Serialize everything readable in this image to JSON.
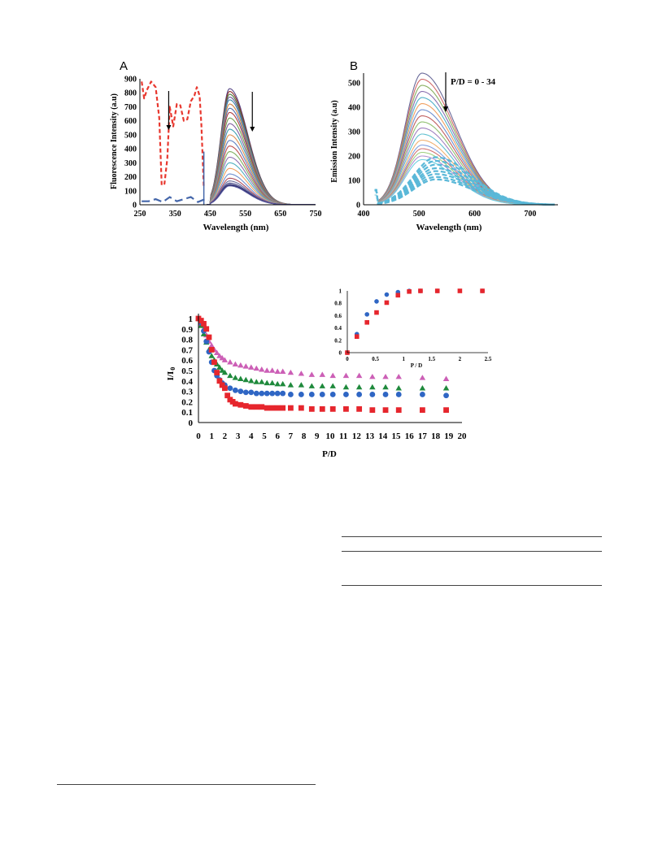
{
  "chart_data": [
    {
      "type": "line",
      "panel_label": "A",
      "xlabel": "Wavelength (nm)",
      "ylabel": "Fluorescence Intensity (a.u)",
      "xlim": [
        250,
        750
      ],
      "ylim": [
        0,
        900
      ],
      "xticks": [
        250,
        350,
        450,
        550,
        650,
        750
      ],
      "yticks": [
        0,
        100,
        200,
        300,
        400,
        500,
        600,
        700,
        800,
        900
      ],
      "excitation_series": {
        "style": "dashed",
        "color": "#e8382f",
        "x": [
          255,
          262,
          270,
          282,
          295,
          305,
          312,
          320,
          328,
          335,
          345,
          355,
          365,
          375,
          385,
          395,
          405,
          412,
          420,
          425,
          432
        ],
        "y": [
          880,
          760,
          820,
          880,
          840,
          620,
          140,
          150,
          330,
          700,
          560,
          720,
          710,
          600,
          610,
          740,
          780,
          840,
          780,
          570,
          120
        ]
      },
      "absorbance_series": {
        "style": "dashed",
        "color": "#4466aa",
        "x": [
          255,
          275,
          295,
          315,
          335,
          355,
          375,
          395,
          415,
          435,
          445
        ],
        "y": [
          25,
          25,
          40,
          20,
          55,
          25,
          40,
          55,
          20,
          40,
          30
        ]
      },
      "emission_peak_nm": 505,
      "emission_peak_values": [
        830,
        810,
        790,
        770,
        750,
        720,
        690,
        660,
        620,
        580,
        540,
        500,
        460,
        420,
        380,
        340,
        300,
        260,
        220,
        190,
        170,
        155,
        145,
        140,
        135
      ],
      "scatter_spike": {
        "x": 432,
        "y": 380
      },
      "series_colors": [
        "#5a4a8a",
        "#8b2e2e",
        "#4a7a3a",
        "#6a5a9a",
        "#3a8aaa",
        "#d08040",
        "#5070b0",
        "#b04040",
        "#70a050",
        "#8060a0",
        "#40a0b0",
        "#e09050",
        "#6080c0",
        "#c05050",
        "#80b060",
        "#9070b0",
        "#50b0c0",
        "#f0a060",
        "#7090d0",
        "#b05060",
        "#6a6a9a",
        "#4a4a8a",
        "#3a3a7a",
        "#2a2a6a",
        "#5a5aa0"
      ],
      "arrows_x": [
        332,
        570
      ]
    },
    {
      "type": "line",
      "panel_label": "B",
      "xlabel": "Wavelength (nm)",
      "ylabel": "Emission Intensity (a.u)",
      "xlim": [
        400,
        750
      ],
      "ylim": [
        0,
        550
      ],
      "xticks": [
        400,
        500,
        600,
        700
      ],
      "yticks": [
        0,
        100,
        200,
        300,
        400,
        500
      ],
      "annotation": "P/D = 0 - 34",
      "solid_peak_nm": 505,
      "solid_peak_values": [
        540,
        515,
        490,
        465,
        440,
        415,
        390,
        365,
        340,
        315,
        290,
        265,
        245,
        230,
        215,
        200,
        185
      ],
      "dashed_peak_nm": 530,
      "dashed_peak_values": [
        195,
        180,
        165,
        150,
        138,
        126,
        114,
        104
      ],
      "solid_colors": [
        "#6a6a9a",
        "#d06a6a",
        "#8ab060",
        "#8a70b0",
        "#50b0c8",
        "#f0a060",
        "#7090d0",
        "#c06060",
        "#90c070",
        "#a080c0",
        "#60c0d0",
        "#f0b070",
        "#80a0e0",
        "#d07070",
        "#a0d080",
        "#b090d0",
        "#70d0e0"
      ],
      "dashed_color": "#5ab8d8"
    },
    {
      "type": "scatter",
      "xlabel": "P/D",
      "ylabel": "I/I",
      "ylabel_subscript": "0",
      "xlim": [
        0,
        20
      ],
      "ylim": [
        0,
        1
      ],
      "xticks": [
        0,
        1,
        2,
        3,
        4,
        5,
        6,
        7,
        8,
        9,
        10,
        11,
        12,
        13,
        14,
        15,
        16,
        17,
        18,
        19,
        20
      ],
      "yticks": [
        "0",
        "0.1",
        "0.2",
        "0.3",
        "0.4",
        "0.5",
        "0.6",
        "0.7",
        "0.8",
        "0.9",
        "1"
      ],
      "series": [
        {
          "marker": "triangle",
          "color": "#cc5fb6",
          "x": [
            0.0,
            0.2,
            0.4,
            0.6,
            0.8,
            1.0,
            1.2,
            1.4,
            1.6,
            1.8,
            2.0,
            2.4,
            2.8,
            3.2,
            3.6,
            4.0,
            4.4,
            4.8,
            5.2,
            5.6,
            6.0,
            6.4,
            7.0,
            7.8,
            8.6,
            9.4,
            10.2,
            11.2,
            12.2,
            13.2,
            14.2,
            15.2,
            17.0,
            18.8
          ],
          "y": [
            1.0,
            0.95,
            0.9,
            0.84,
            0.78,
            0.74,
            0.7,
            0.67,
            0.64,
            0.62,
            0.6,
            0.58,
            0.56,
            0.55,
            0.54,
            0.53,
            0.52,
            0.51,
            0.5,
            0.5,
            0.49,
            0.49,
            0.48,
            0.47,
            0.46,
            0.46,
            0.45,
            0.45,
            0.45,
            0.44,
            0.44,
            0.44,
            0.43,
            0.42
          ]
        },
        {
          "marker": "triangle",
          "color": "#1f8a3c",
          "x": [
            0.0,
            0.2,
            0.4,
            0.6,
            0.8,
            1.0,
            1.2,
            1.4,
            1.6,
            1.8,
            2.0,
            2.4,
            2.8,
            3.2,
            3.6,
            4.0,
            4.4,
            4.8,
            5.2,
            5.6,
            6.0,
            6.4,
            7.0,
            7.8,
            8.6,
            9.4,
            10.2,
            11.2,
            12.2,
            13.2,
            14.2,
            15.2,
            17.0,
            18.8
          ],
          "y": [
            1.0,
            0.93,
            0.85,
            0.77,
            0.7,
            0.64,
            0.6,
            0.56,
            0.53,
            0.5,
            0.48,
            0.45,
            0.43,
            0.42,
            0.41,
            0.4,
            0.39,
            0.39,
            0.38,
            0.38,
            0.37,
            0.37,
            0.36,
            0.36,
            0.35,
            0.35,
            0.35,
            0.34,
            0.34,
            0.34,
            0.34,
            0.33,
            0.33,
            0.33
          ]
        },
        {
          "marker": "circle",
          "color": "#2f66c4",
          "x": [
            0.0,
            0.2,
            0.4,
            0.6,
            0.8,
            1.0,
            1.2,
            1.4,
            1.6,
            1.8,
            2.0,
            2.4,
            2.8,
            3.2,
            3.6,
            4.0,
            4.4,
            4.8,
            5.2,
            5.6,
            6.0,
            6.4,
            7.0,
            7.8,
            8.6,
            9.4,
            10.2,
            11.2,
            12.2,
            13.2,
            14.2,
            15.2,
            17.0,
            18.8
          ],
          "y": [
            1.0,
            0.96,
            0.88,
            0.78,
            0.68,
            0.58,
            0.5,
            0.45,
            0.41,
            0.38,
            0.36,
            0.33,
            0.31,
            0.3,
            0.29,
            0.29,
            0.28,
            0.28,
            0.28,
            0.28,
            0.28,
            0.28,
            0.27,
            0.27,
            0.27,
            0.27,
            0.27,
            0.27,
            0.27,
            0.27,
            0.27,
            0.27,
            0.27,
            0.26
          ]
        },
        {
          "marker": "square",
          "color": "#e6262d",
          "x": [
            0.0,
            0.2,
            0.4,
            0.6,
            0.8,
            1.0,
            1.2,
            1.4,
            1.6,
            1.8,
            2.0,
            2.2,
            2.4,
            2.6,
            2.8,
            3.2,
            3.6,
            4.0,
            4.4,
            4.8,
            5.2,
            5.6,
            6.0,
            6.4,
            7.0,
            7.8,
            8.6,
            9.4,
            10.2,
            11.2,
            12.2,
            13.2,
            14.2,
            15.2,
            17.0,
            18.8
          ],
          "y": [
            1.0,
            0.98,
            0.95,
            0.9,
            0.82,
            0.7,
            0.58,
            0.48,
            0.4,
            0.36,
            0.33,
            0.26,
            0.22,
            0.2,
            0.18,
            0.17,
            0.16,
            0.15,
            0.15,
            0.15,
            0.14,
            0.14,
            0.14,
            0.14,
            0.14,
            0.14,
            0.13,
            0.13,
            0.13,
            0.13,
            0.13,
            0.12,
            0.12,
            0.12,
            0.12,
            0.12
          ]
        }
      ]
    },
    {
      "type": "scatter",
      "role": "inset",
      "xlabel": "P / D",
      "xlim": [
        0,
        2.5
      ],
      "ylim": [
        0,
        1
      ],
      "xticks": [
        "0",
        "0.5",
        "1",
        "1.5",
        "2",
        "2.5"
      ],
      "yticks": [
        "0",
        "0.2",
        "0.4",
        "0.6",
        "0.8",
        "1"
      ],
      "series": [
        {
          "marker": "circle",
          "color": "#2f66c4",
          "x": [
            0.0,
            0.17,
            0.35,
            0.52,
            0.7,
            0.9,
            1.1,
            1.3,
            1.6,
            2.4
          ],
          "y": [
            0.0,
            0.3,
            0.62,
            0.83,
            0.94,
            0.98,
            1.0,
            1.0,
            1.0,
            1.0
          ]
        },
        {
          "marker": "square",
          "color": "#e6262d",
          "x": [
            0.0,
            0.17,
            0.35,
            0.52,
            0.7,
            0.9,
            1.1,
            1.3,
            1.6,
            2.0,
            2.4
          ],
          "y": [
            0.0,
            0.26,
            0.49,
            0.65,
            0.81,
            0.93,
            0.99,
            1.0,
            1.0,
            1.0,
            1.0
          ]
        }
      ]
    }
  ]
}
